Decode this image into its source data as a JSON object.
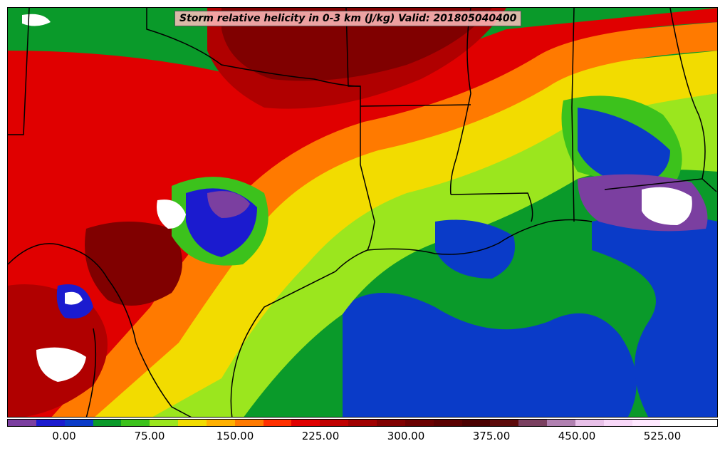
{
  "map": {
    "title": "Storm relative helicity in 0-3 km (J/kg) Valid: 201805040400",
    "fill_palette": {
      "neg": "#7b3fa0",
      "zero": "#1b1bcf",
      "blue": "#0a3bc8",
      "dkgreen": "#0a9a2a",
      "green": "#3cc21c",
      "lime": "#9be61e",
      "yellow": "#f2dc00",
      "orange": "#ff9a00",
      "redorange": "#ff4a00",
      "red": "#e00000",
      "darkred": "#b00000",
      "maroon": "#800000",
      "dkmaroon": "#5a0000",
      "mauve": "#a06080",
      "pink": "#e8b4e0",
      "white": "#ffffff"
    },
    "boundary_color": "#000000"
  },
  "colorbar": {
    "colors": [
      "#7b3fa0",
      "#1b1bcf",
      "#0a3bc8",
      "#0a9a2a",
      "#3cc21c",
      "#9be61e",
      "#f2dc00",
      "#ffb000",
      "#ff7a00",
      "#ff3000",
      "#e00000",
      "#c00000",
      "#a00000",
      "#800000",
      "#6a0000",
      "#5a0000",
      "#4a0000",
      "#5c0a0a",
      "#7a4060",
      "#b080b0",
      "#e8c0e8",
      "#f8d8f8",
      "#ffe8ff",
      "#ffffff",
      "#ffffff"
    ],
    "tick_labels": [
      "0.00",
      "75.00",
      "150.00",
      "225.00",
      "300.00",
      "375.00",
      "450.00",
      "525.00"
    ]
  }
}
